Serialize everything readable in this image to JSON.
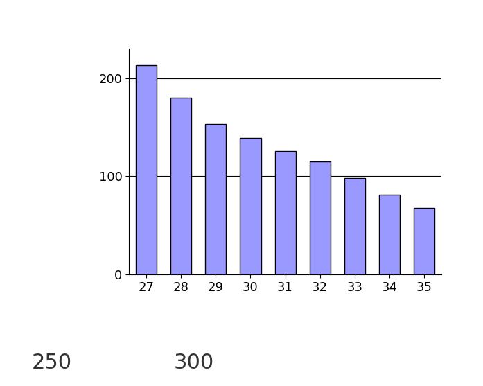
{
  "chart_data": {
    "type": "bar",
    "categories": [
      "27",
      "28",
      "29",
      "30",
      "31",
      "32",
      "33",
      "34",
      "35"
    ],
    "values": [
      213,
      180,
      153,
      139,
      126,
      115,
      98,
      81,
      68
    ],
    "color": "#9999ff",
    "ylim": [
      0,
      230
    ],
    "yticks": [
      0,
      100,
      200
    ],
    "grid": true,
    "annotations": [
      "250",
      "300"
    ]
  }
}
